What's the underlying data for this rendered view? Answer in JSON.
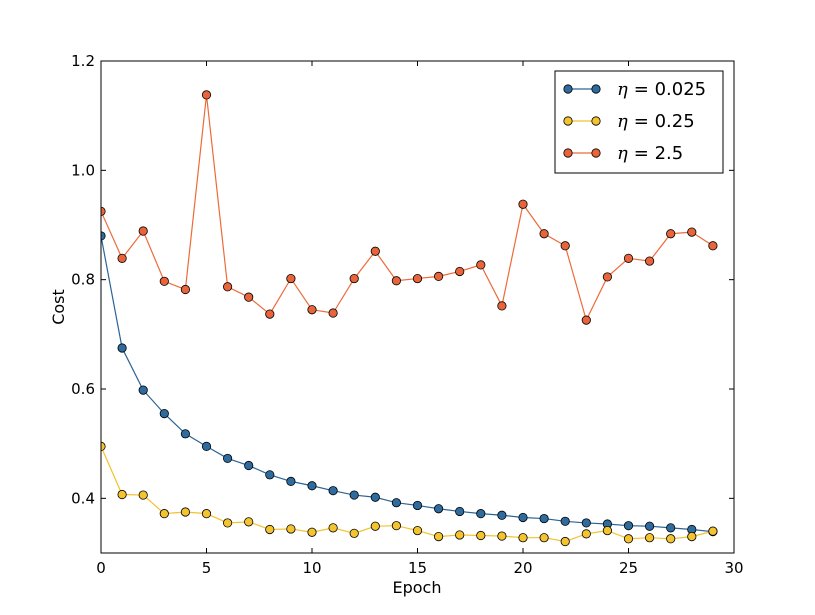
{
  "chart_data": {
    "type": "line",
    "title": "",
    "xlabel": "Epoch",
    "ylabel": "Cost",
    "xlim": [
      0,
      30
    ],
    "ylim": [
      0.3,
      1.2
    ],
    "xticks": [
      0,
      5,
      10,
      15,
      20,
      25,
      30
    ],
    "yticks": [
      0.4,
      0.6,
      0.8,
      1.0,
      1.2
    ],
    "xtick_labels": [
      "0",
      "5",
      "10",
      "15",
      "20",
      "25",
      "30"
    ],
    "ytick_labels": [
      "0.4",
      "0.6",
      "0.8",
      "1.0",
      "1.2"
    ],
    "grid": false,
    "legend_position": "top-right",
    "x": [
      0,
      1,
      2,
      3,
      4,
      5,
      6,
      7,
      8,
      9,
      10,
      11,
      12,
      13,
      14,
      15,
      16,
      17,
      18,
      19,
      20,
      21,
      22,
      23,
      24,
      25,
      26,
      27,
      28,
      29
    ],
    "series": [
      {
        "name": "η = 0.025",
        "symbol": "η",
        "value_text": "= 0.025",
        "line_color": "#2A6496",
        "marker_color": "#2E6B9E",
        "values": [
          0.88,
          0.675,
          0.598,
          0.555,
          0.518,
          0.495,
          0.473,
          0.46,
          0.443,
          0.431,
          0.423,
          0.414,
          0.406,
          0.402,
          0.392,
          0.387,
          0.381,
          0.376,
          0.372,
          0.369,
          0.365,
          0.363,
          0.358,
          0.355,
          0.353,
          0.35,
          0.349,
          0.346,
          0.343,
          0.339
        ]
      },
      {
        "name": "η = 0.25",
        "symbol": "η",
        "value_text": "= 0.25",
        "line_color": "#F2C12E",
        "marker_color": "#F4C430",
        "values": [
          0.495,
          0.407,
          0.406,
          0.372,
          0.375,
          0.372,
          0.355,
          0.357,
          0.343,
          0.344,
          0.338,
          0.346,
          0.336,
          0.349,
          0.35,
          0.341,
          0.33,
          0.333,
          0.332,
          0.331,
          0.328,
          0.328,
          0.321,
          0.335,
          0.341,
          0.326,
          0.328,
          0.326,
          0.33,
          0.34
        ]
      },
      {
        "name": "η = 2.5",
        "symbol": "η",
        "value_text": "= 2.5",
        "line_color": "#EE6A3A",
        "marker_color": "#E8643A",
        "values": [
          0.925,
          0.839,
          0.889,
          0.797,
          0.782,
          1.138,
          0.787,
          0.768,
          0.737,
          0.802,
          0.745,
          0.739,
          0.802,
          0.852,
          0.798,
          0.802,
          0.806,
          0.815,
          0.827,
          0.752,
          0.938,
          0.884,
          0.862,
          0.726,
          0.805,
          0.839,
          0.834,
          0.884,
          0.887,
          0.862
        ]
      }
    ]
  }
}
